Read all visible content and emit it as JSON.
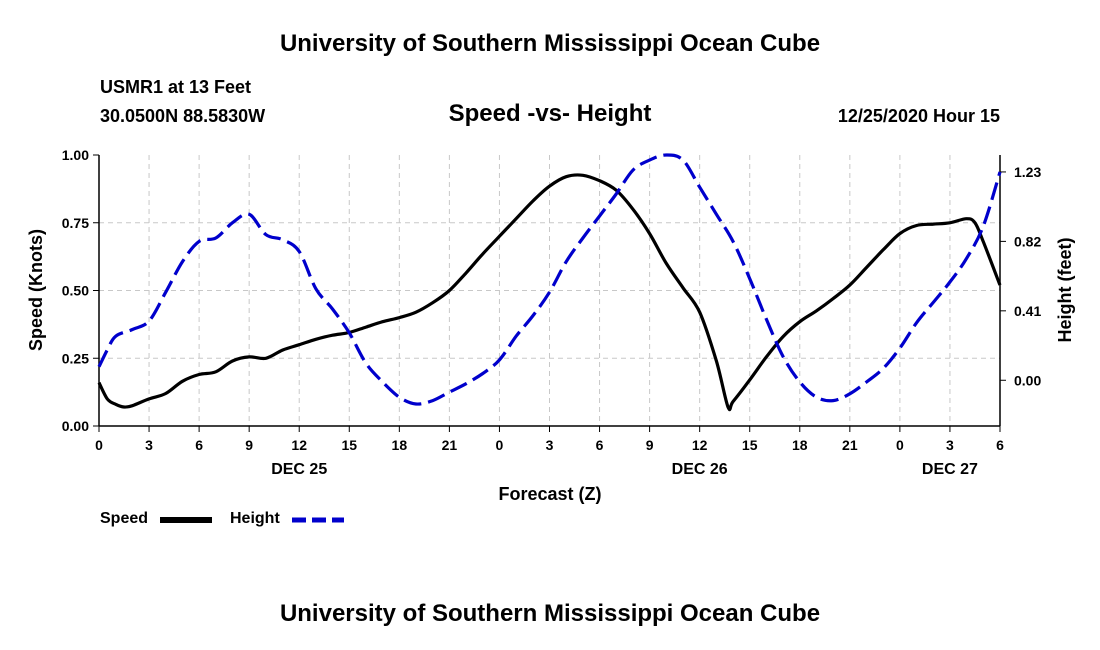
{
  "page": {
    "title": "University of Southern Mississippi Ocean Cube",
    "footer_title": "University of Southern Mississippi Ocean Cube",
    "station": "USMR1 at 13 Feet",
    "coords": "30.0500N 88.5830W",
    "chart_title": "Speed -vs- Height",
    "timestamp": "12/25/2020 Hour 15"
  },
  "legend": {
    "speed_label": "Speed",
    "height_label": "Height"
  },
  "colors": {
    "speed": "#000000",
    "height": "#0000cc",
    "grid": "#c8c8c8"
  },
  "chart_data": {
    "type": "line",
    "title": "Speed -vs- Height",
    "xlabel": "Forecast (Z)",
    "ylabel": "Speed (Knots)",
    "y2label": "Height (feet)",
    "xlim": [
      0,
      54
    ],
    "ylim": [
      0,
      1.0
    ],
    "y2lim": [
      -0.27,
      1.33
    ],
    "x_ticks": [
      0,
      3,
      6,
      9,
      12,
      15,
      18,
      21,
      24,
      27,
      30,
      33,
      36,
      39,
      42,
      45,
      48,
      51,
      54
    ],
    "x_tick_labels": [
      "0",
      "3",
      "6",
      "9",
      "12",
      "15",
      "18",
      "21",
      "0",
      "3",
      "6",
      "9",
      "12",
      "15",
      "18",
      "21",
      "0",
      "3",
      "6"
    ],
    "y_ticks": [
      0.0,
      0.25,
      0.5,
      0.75,
      1.0
    ],
    "y_tick_labels": [
      "0.00",
      "0.25",
      "0.50",
      "0.75",
      "1.00"
    ],
    "y2_ticks": [
      0.0,
      0.41,
      0.82,
      1.23
    ],
    "y2_tick_labels": [
      "0.00",
      "0.41",
      "0.82",
      "1.23"
    ],
    "date_labels": [
      {
        "x": 12,
        "label": "DEC 25"
      },
      {
        "x": 36,
        "label": "DEC 26"
      },
      {
        "x": 51,
        "label": "DEC 27"
      }
    ],
    "grid": true,
    "series": [
      {
        "name": "Speed",
        "axis": "left",
        "style": "solid",
        "x": [
          0,
          0.5,
          1,
          1.5,
          2,
          3,
          4,
          5,
          6,
          7,
          8,
          9,
          10,
          11,
          12,
          13,
          14,
          15,
          16,
          17,
          18,
          19,
          20,
          21,
          22,
          23,
          24,
          25,
          26,
          27,
          28,
          29,
          30,
          31,
          32,
          33,
          34,
          35,
          36,
          37,
          37.7,
          38,
          39,
          40,
          41,
          42,
          43,
          44,
          45,
          46,
          47,
          48,
          49,
          50,
          51,
          52,
          52.5,
          53,
          54
        ],
        "values": [
          0.16,
          0.1,
          0.08,
          0.07,
          0.075,
          0.1,
          0.12,
          0.165,
          0.19,
          0.2,
          0.24,
          0.255,
          0.25,
          0.28,
          0.3,
          0.32,
          0.335,
          0.345,
          0.365,
          0.385,
          0.4,
          0.42,
          0.455,
          0.5,
          0.565,
          0.635,
          0.7,
          0.765,
          0.83,
          0.885,
          0.92,
          0.925,
          0.905,
          0.87,
          0.8,
          0.71,
          0.6,
          0.51,
          0.42,
          0.24,
          0.07,
          0.09,
          0.17,
          0.255,
          0.33,
          0.385,
          0.425,
          0.47,
          0.52,
          0.585,
          0.65,
          0.71,
          0.74,
          0.745,
          0.75,
          0.765,
          0.75,
          0.68,
          0.52
        ]
      },
      {
        "name": "Height",
        "axis": "right",
        "style": "dashed",
        "x": [
          0,
          0.5,
          1,
          2,
          3,
          4,
          5,
          6,
          7,
          8,
          9,
          10,
          11,
          12,
          13,
          14,
          15,
          16,
          17,
          18,
          19,
          20,
          21,
          22,
          23,
          24,
          25,
          26,
          27,
          28,
          29,
          30,
          31,
          32,
          33,
          34,
          35,
          36,
          37,
          38,
          39,
          40,
          41,
          42,
          43,
          44,
          45,
          46,
          47,
          48,
          49,
          50,
          51,
          52,
          53,
          54
        ],
        "values": [
          0.08,
          0.18,
          0.26,
          0.3,
          0.35,
          0.52,
          0.7,
          0.82,
          0.84,
          0.93,
          0.98,
          0.86,
          0.83,
          0.76,
          0.54,
          0.42,
          0.28,
          0.1,
          -0.01,
          -0.1,
          -0.14,
          -0.12,
          -0.07,
          -0.02,
          0.04,
          0.12,
          0.26,
          0.38,
          0.52,
          0.7,
          0.84,
          0.97,
          1.1,
          1.24,
          1.3,
          1.33,
          1.3,
          1.14,
          0.98,
          0.82,
          0.6,
          0.36,
          0.14,
          -0.01,
          -0.1,
          -0.12,
          -0.08,
          -0.01,
          0.07,
          0.19,
          0.34,
          0.46,
          0.58,
          0.72,
          0.91,
          1.23
        ]
      }
    ]
  }
}
